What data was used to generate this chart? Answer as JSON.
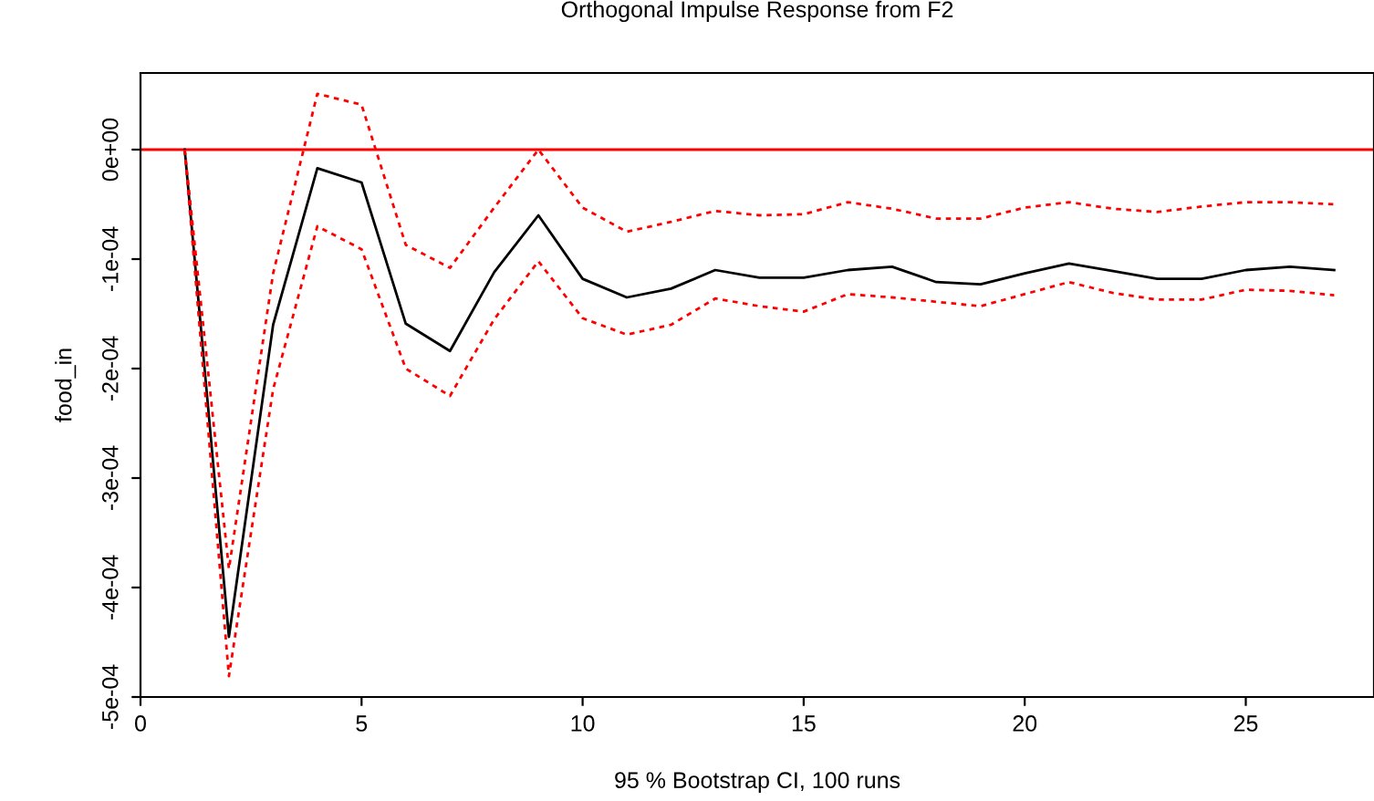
{
  "chart_data": {
    "type": "line",
    "title": "Orthogonal Impulse Response from F2",
    "xlabel": "95 % Bootstrap CI, 100 runs",
    "ylabel": "food_in",
    "x": [
      1,
      2,
      3,
      4,
      5,
      6,
      7,
      8,
      9,
      10,
      11,
      12,
      13,
      14,
      15,
      16,
      17,
      18,
      19,
      20,
      21,
      22,
      23,
      24,
      25,
      26,
      27
    ],
    "series": [
      {
        "color": "#000000",
        "line_style": "solid",
        "values": [
          0,
          -0.000445,
          -0.00016,
          -1.7e-05,
          -3e-05,
          -0.000159,
          -0.000184,
          -0.000112,
          -6e-05,
          -0.000118,
          -0.000135,
          -0.000127,
          -0.00011,
          -0.000117,
          -0.000117,
          -0.00011,
          -0.000107,
          -0.000121,
          -0.000123,
          -0.000113,
          -0.000104,
          -0.000111,
          -0.000118,
          -0.000118,
          -0.00011,
          -0.000107,
          -0.00011
        ]
      },
      {
        "color": "#ff0000",
        "line_style": "dashed",
        "values": [
          0,
          -0.000383,
          -0.000113,
          5.1e-05,
          4.1e-05,
          -8.7e-05,
          -0.000108,
          -5.3e-05,
          0.0,
          -5.3e-05,
          -7.5e-05,
          -6.6e-05,
          -5.6e-05,
          -6e-05,
          -5.9e-05,
          -4.8e-05,
          -5.4e-05,
          -6.3e-05,
          -6.3e-05,
          -5.3e-05,
          -4.8e-05,
          -5.4e-05,
          -5.7e-05,
          -5.2e-05,
          -4.8e-05,
          -4.8e-05,
          -5e-05
        ]
      },
      {
        "color": "#ff0000",
        "line_style": "dashed",
        "values": [
          0,
          -0.000481,
          -0.000219,
          -7e-05,
          -9.1e-05,
          -0.0002,
          -0.000225,
          -0.000155,
          -0.000102,
          -0.000154,
          -0.000169,
          -0.00016,
          -0.000136,
          -0.000143,
          -0.000148,
          -0.000132,
          -0.000135,
          -0.000139,
          -0.000143,
          -0.000132,
          -0.000121,
          -0.000131,
          -0.000137,
          -0.000137,
          -0.000128,
          -0.000129,
          -0.000133
        ]
      }
    ],
    "xlim": [
      0,
      27.9
    ],
    "xticks": [
      0,
      5,
      10,
      15,
      20,
      25
    ],
    "ylim": [
      -0.0005,
      7e-05
    ],
    "yticks": [
      {
        "value": -0.0005,
        "label": "-5e-04"
      },
      {
        "value": -0.0004,
        "label": "-4e-04"
      },
      {
        "value": -0.0003,
        "label": "-3e-04"
      },
      {
        "value": -0.0002,
        "label": "-2e-04"
      },
      {
        "value": -0.0001,
        "label": "-1e-04"
      },
      {
        "value": 0,
        "label": "0e+00"
      }
    ],
    "ref_lines": [
      {
        "axis": "y",
        "value": 0,
        "color": "#ff0000",
        "line_style": "solid"
      }
    ],
    "grid": false,
    "legend": false,
    "marker": "none"
  }
}
